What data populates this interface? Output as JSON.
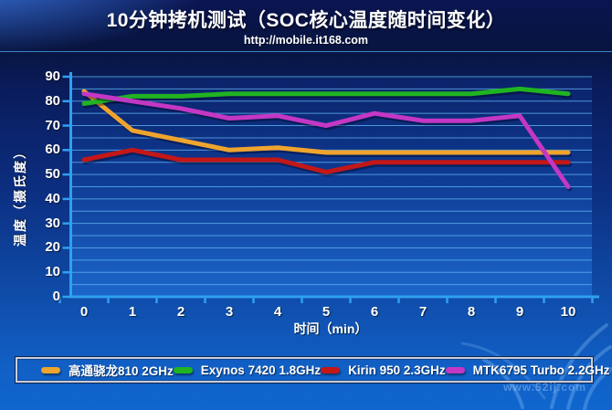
{
  "header": {
    "title": "10分钟拷机测试（SOC核心温度随时间变化）",
    "subtitle": "http://mobile.it168.com"
  },
  "chart_data": {
    "type": "line",
    "title": "10分钟拷机测试（SOC核心温度随时间变化）",
    "subtitle": "http://mobile.it168.com",
    "xlabel": "时间（min）",
    "ylabel": "温度（摄氏度）",
    "x": [
      0,
      1,
      2,
      3,
      4,
      5,
      6,
      7,
      8,
      9,
      10
    ],
    "x_tick_labels": [
      "0",
      "1",
      "2",
      "3",
      "4",
      "5",
      "6",
      "7",
      "8",
      "9",
      "10"
    ],
    "ylim": [
      0,
      90
    ],
    "ytick_step": 10,
    "grid": true,
    "grid_step": 5,
    "legend_position": "bottom",
    "axis_color": "#2FA0F0",
    "grid_color": "#5FB0F0",
    "series": [
      {
        "name": "高通骁龙810 2GHz",
        "color": "#EFA42E",
        "values": [
          84,
          68,
          64,
          60,
          61,
          59,
          59,
          59,
          59,
          59,
          59
        ]
      },
      {
        "name": "Exynos 7420 1.8GHz",
        "color": "#21B321",
        "values": [
          79,
          82,
          82,
          83,
          83,
          83,
          83,
          83,
          83,
          85,
          83
        ]
      },
      {
        "name": "Kirin 950 2.3GHz",
        "color": "#C41717",
        "values": [
          56,
          60,
          56,
          56,
          56,
          51,
          55,
          55,
          55,
          55,
          55
        ]
      },
      {
        "name": "MTK6795 Turbo 2.2GHz",
        "color": "#C437C4",
        "values": [
          83,
          80,
          77,
          73,
          74,
          70,
          75,
          72,
          72,
          74,
          45
        ]
      }
    ]
  },
  "watermark": {
    "url_text": "www.52ij.com"
  }
}
